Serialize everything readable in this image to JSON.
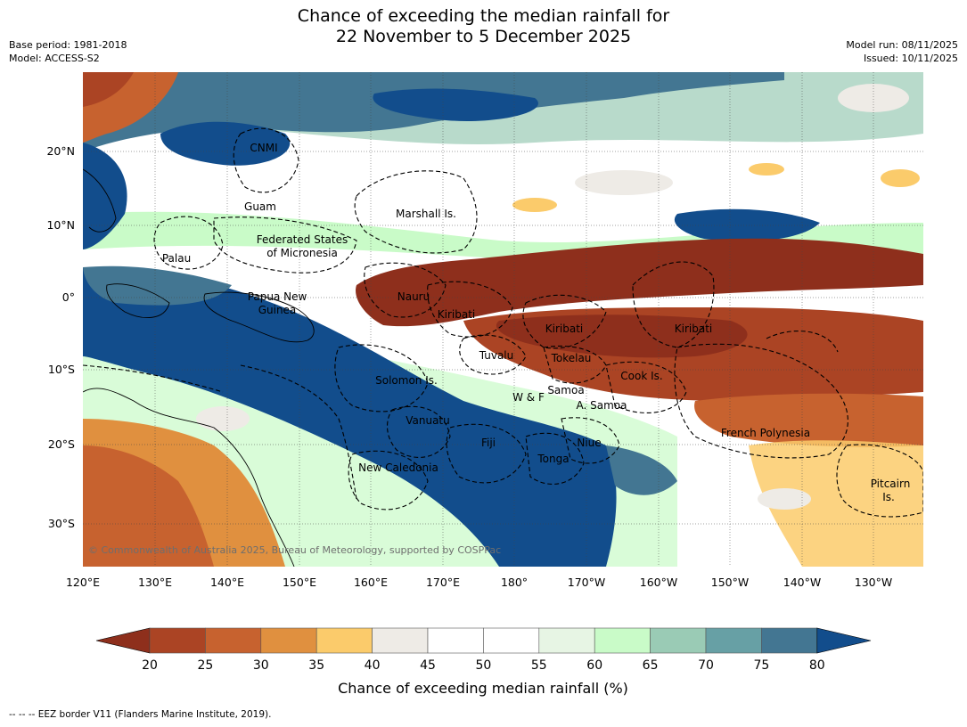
{
  "title": {
    "line1": "Chance of exceeding the median rainfall for",
    "line2": "22 November to 5 December 2025"
  },
  "meta_left": {
    "base_period": "Base period: 1981-2018",
    "model": "Model: ACCESS-S2"
  },
  "meta_right": {
    "model_run": "Model run: 08/11/2025",
    "issued": "Issued: 10/11/2025"
  },
  "axes": {
    "lon_labels": [
      "120°E",
      "130°E",
      "140°E",
      "150°E",
      "160°E",
      "170°E",
      "180°",
      "170°W",
      "160°W",
      "150°W",
      "140°W",
      "130°W"
    ],
    "lat_labels": [
      "20°N",
      "10°N",
      "0°",
      "10°S",
      "20°S",
      "30°S"
    ]
  },
  "regions": [
    {
      "name": "CNMI"
    },
    {
      "name": "Guam"
    },
    {
      "name": "Marshall Is."
    },
    {
      "name": "Federated States"
    },
    {
      "name": "of Micronesia"
    },
    {
      "name": "Palau"
    },
    {
      "name": "Papua New"
    },
    {
      "name": "Guinea"
    },
    {
      "name": "Nauru"
    },
    {
      "name": "Kiribati"
    },
    {
      "name": "Kiribati"
    },
    {
      "name": "Kiribati"
    },
    {
      "name": "Tuvalu"
    },
    {
      "name": "Tokelau"
    },
    {
      "name": "Solomon Is."
    },
    {
      "name": "W & F"
    },
    {
      "name": "Samoa"
    },
    {
      "name": "A. Samoa"
    },
    {
      "name": "Cook Is."
    },
    {
      "name": "Vanuatu"
    },
    {
      "name": "Fiji"
    },
    {
      "name": "Niue"
    },
    {
      "name": "Tonga"
    },
    {
      "name": "French Polynesia"
    },
    {
      "name": "New Caledonia"
    },
    {
      "name": "Pitcairn"
    },
    {
      "name": "Is."
    }
  ],
  "copyright": "© Commonwealth of Australia 2025, Bureau of Meteorology, supported by COSPPac",
  "colorbar": {
    "ticks": [
      "20",
      "25",
      "30",
      "35",
      "40",
      "45",
      "50",
      "55",
      "60",
      "65",
      "70",
      "75",
      "80"
    ],
    "label": "Chance of exceeding median rainfall (%)",
    "colors": [
      "#8e2f1c",
      "#ab4424",
      "#c7622f",
      "#e0903f",
      "#fbcb6b",
      "#eeebe6",
      "#ffffff",
      "#ffffff",
      "#e7f5e4",
      "#c9fbc8",
      "#9acbb5",
      "#67a0a5",
      "#437692",
      "#124d8c"
    ]
  },
  "footnote": "--  --  -- EEZ border V11 (Flanders Marine Institute, 2019)."
}
